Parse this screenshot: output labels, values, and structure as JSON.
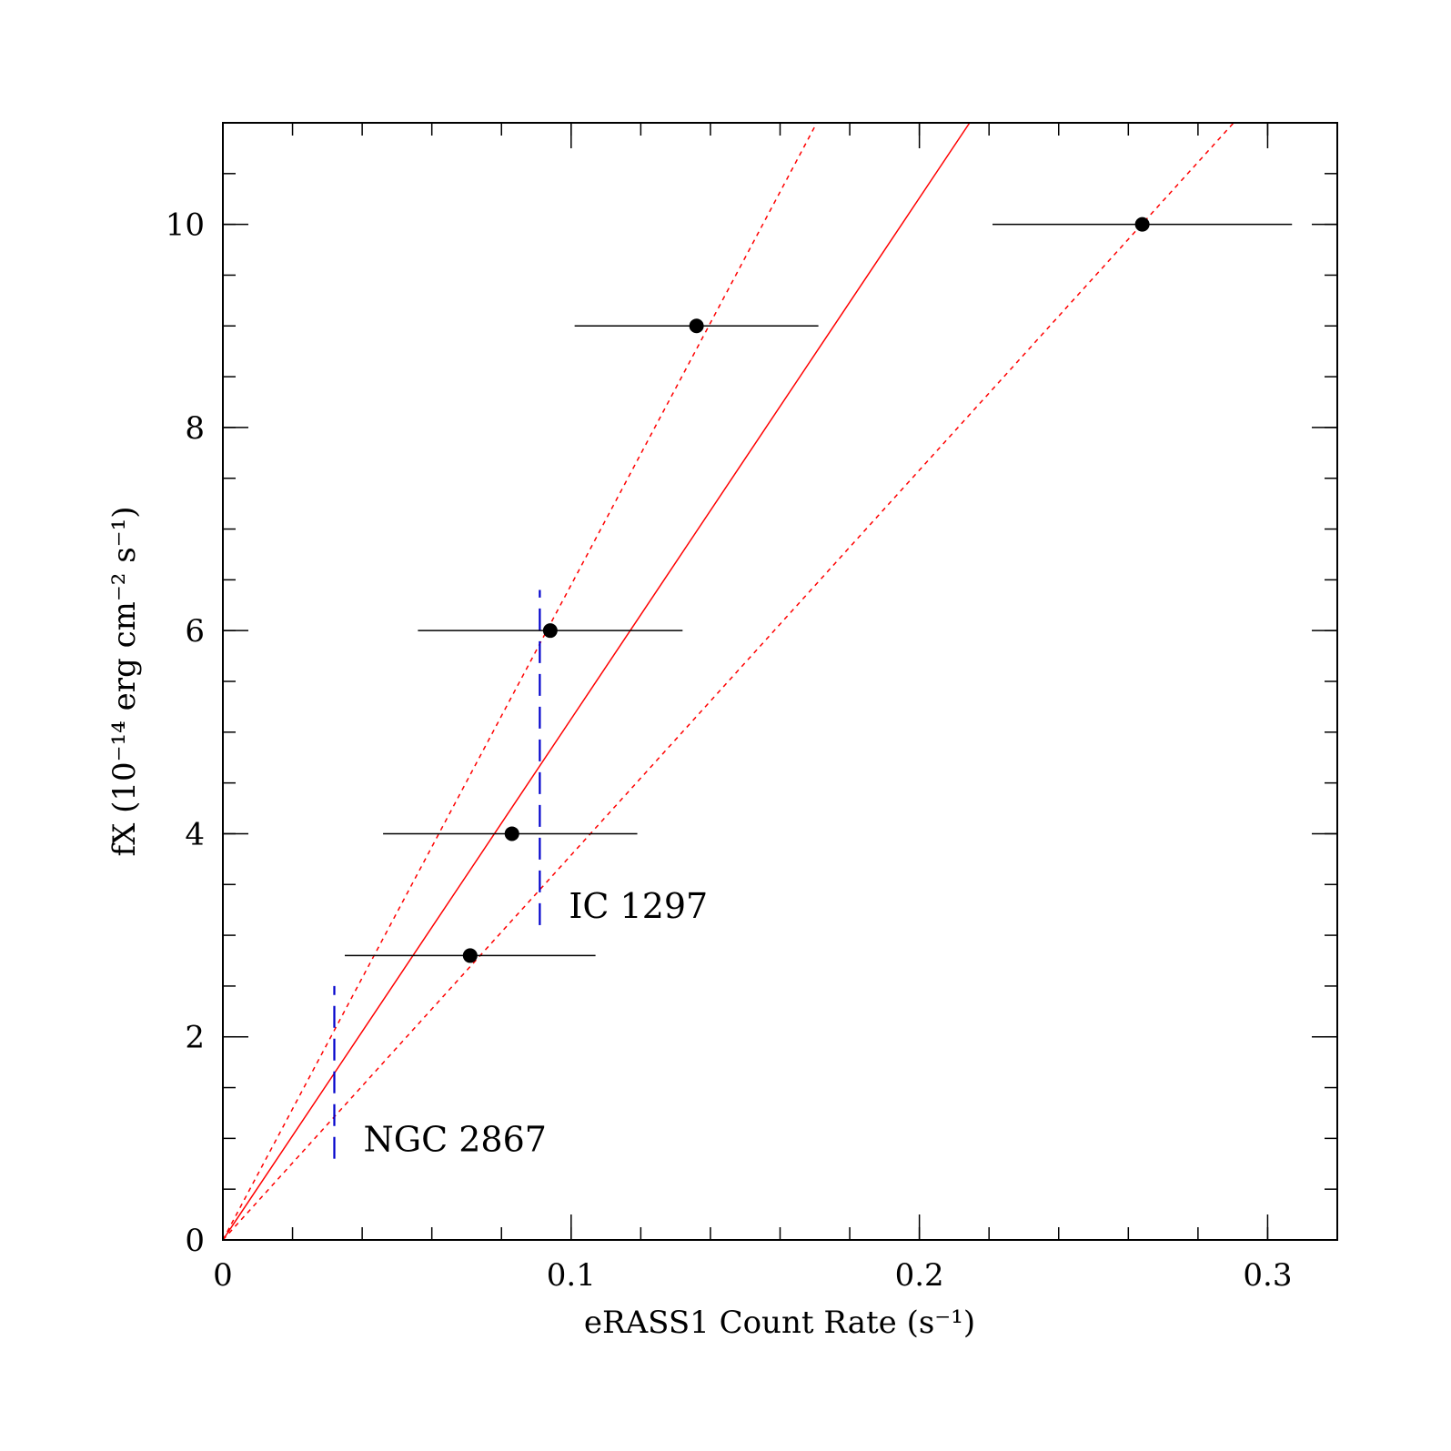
{
  "chart_data": {
    "type": "scatter",
    "title": "",
    "xlabel": "eRASS1 Count Rate (s⁻¹)",
    "ylabel": "fX (10⁻¹⁴ erg cm⁻² s⁻¹)",
    "xlim": [
      0,
      0.32
    ],
    "ylim": [
      0,
      11
    ],
    "xticks": [
      0,
      0.1,
      0.2,
      0.3
    ],
    "xtick_labels": [
      "0",
      "0.1",
      "0.2",
      "0.3"
    ],
    "x_minor_step": 0.02,
    "yticks": [
      0,
      2,
      4,
      6,
      8,
      10
    ],
    "ytick_labels": [
      "0",
      "2",
      "4",
      "6",
      "8",
      "10"
    ],
    "y_minor_step": 0.5,
    "points": [
      {
        "x": 0.071,
        "y": 2.8,
        "xerr_low": 0.036,
        "xerr_high": 0.036
      },
      {
        "x": 0.083,
        "y": 4.0,
        "xerr_low": 0.037,
        "xerr_high": 0.036
      },
      {
        "x": 0.094,
        "y": 6.0,
        "xerr_low": 0.038,
        "xerr_high": 0.038
      },
      {
        "x": 0.136,
        "y": 9.0,
        "xerr_low": 0.035,
        "xerr_high": 0.035
      },
      {
        "x": 0.264,
        "y": 10.0,
        "xerr_low": 0.043,
        "xerr_high": 0.043
      }
    ],
    "fit_lines": [
      {
        "name": "best fit",
        "style": "solid",
        "color": "#ff0000",
        "slope": 51.3
      },
      {
        "name": "upper bound",
        "style": "dotted",
        "color": "#ff0000",
        "slope": 64.5
      },
      {
        "name": "lower bound",
        "style": "dotted",
        "color": "#ff0000",
        "slope": 37.9
      }
    ],
    "markers": [
      {
        "label": "NGC 2867",
        "x": 0.032,
        "y_range": [
          0.8,
          2.5
        ],
        "color": "#0000cc"
      },
      {
        "label": "IC 1297",
        "x": 0.091,
        "y_range": [
          3.1,
          6.4
        ],
        "color": "#0000cc"
      }
    ]
  }
}
